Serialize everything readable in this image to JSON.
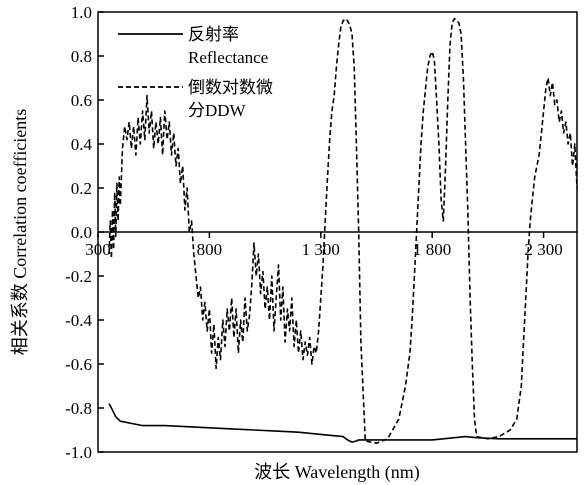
{
  "chart_data": {
    "type": "line",
    "xlabel": "波长 Wavelength (nm)",
    "ylabel": "相关系数 Correlation coefficients",
    "xlim": [
      300,
      2450
    ],
    "ylim": [
      -1.0,
      1.0
    ],
    "yticks": [
      -1.0,
      -0.8,
      -0.6,
      -0.4,
      -0.2,
      0.0,
      0.2,
      0.4,
      0.6,
      0.8,
      1.0
    ],
    "ytick_labels": [
      "-1.0",
      "-0.8",
      "-0.6",
      "-0.4",
      "-0.2",
      "0.0",
      "0.2",
      "0.4",
      "0.6",
      "0.8",
      "1.0"
    ],
    "xticks": [
      300,
      800,
      1300,
      1800,
      2300
    ],
    "xtick_labels": [
      "300",
      "800",
      "1 300",
      "1 800",
      "2 300"
    ],
    "xtick_label_axis_y": 0.0,
    "grid": false,
    "legend": {
      "placement": "top-left",
      "entries": [
        {
          "lines": [
            "反射率",
            "Reflectance"
          ],
          "style": "solid"
        },
        {
          "lines": [
            "倒数对数微",
            "分DDW"
          ],
          "style": "dashed"
        }
      ]
    },
    "series": [
      {
        "style": "solid",
        "x": [
          350,
          360,
          380,
          400,
          450,
          500,
          600,
          700,
          800,
          900,
          1000,
          1100,
          1200,
          1300,
          1400,
          1420,
          1440,
          1460,
          1470,
          1500,
          1600,
          1700,
          1800,
          1900,
          1950,
          2000,
          2100,
          2200,
          2300,
          2400,
          2450
        ],
        "y": [
          -0.78,
          -0.8,
          -0.84,
          -0.86,
          -0.87,
          -0.88,
          -0.88,
          -0.885,
          -0.89,
          -0.895,
          -0.9,
          -0.905,
          -0.91,
          -0.92,
          -0.93,
          -0.945,
          -0.955,
          -0.95,
          -0.945,
          -0.945,
          -0.945,
          -0.945,
          -0.945,
          -0.935,
          -0.93,
          -0.935,
          -0.94,
          -0.94,
          -0.94,
          -0.94,
          -0.94
        ]
      },
      {
        "style": "dashed",
        "x": [
          350,
          355,
          360,
          365,
          370,
          375,
          380,
          385,
          390,
          395,
          400,
          410,
          420,
          430,
          440,
          450,
          460,
          470,
          480,
          490,
          500,
          510,
          520,
          530,
          540,
          550,
          560,
          570,
          580,
          590,
          600,
          610,
          620,
          630,
          640,
          650,
          660,
          670,
          680,
          690,
          700,
          710,
          720,
          730,
          740,
          750,
          760,
          770,
          780,
          790,
          800,
          810,
          820,
          830,
          840,
          850,
          860,
          870,
          880,
          890,
          900,
          910,
          920,
          930,
          940,
          950,
          960,
          970,
          980,
          990,
          1000,
          1010,
          1020,
          1030,
          1040,
          1050,
          1060,
          1070,
          1080,
          1090,
          1100,
          1110,
          1120,
          1130,
          1140,
          1150,
          1160,
          1170,
          1180,
          1190,
          1200,
          1210,
          1220,
          1230,
          1240,
          1250,
          1260,
          1270,
          1280,
          1290,
          1300,
          1310,
          1320,
          1330,
          1340,
          1350,
          1360,
          1370,
          1380,
          1390,
          1400,
          1410,
          1420,
          1430,
          1440,
          1450,
          1460,
          1470,
          1480,
          1500,
          1550,
          1600,
          1650,
          1680,
          1700,
          1710,
          1720,
          1730,
          1740,
          1750,
          1760,
          1770,
          1780,
          1790,
          1800,
          1810,
          1820,
          1830,
          1840,
          1850,
          1860,
          1870,
          1880,
          1890,
          1900,
          1910,
          1920,
          1930,
          1940,
          1950,
          1960,
          1970,
          1980,
          1990,
          2000,
          2050,
          2100,
          2150,
          2180,
          2200,
          2210,
          2220,
          2230,
          2240,
          2250,
          2260,
          2270,
          2280,
          2290,
          2300,
          2310,
          2320,
          2330,
          2340,
          2350,
          2360,
          2370,
          2380,
          2390,
          2400,
          2410,
          2420,
          2430,
          2440,
          2450
        ],
        "y": [
          -0.1,
          0.05,
          -0.12,
          0.1,
          -0.08,
          0.18,
          -0.02,
          0.22,
          0.05,
          0.25,
          0.12,
          0.38,
          0.48,
          0.42,
          0.5,
          0.38,
          0.48,
          0.35,
          0.52,
          0.4,
          0.55,
          0.42,
          0.62,
          0.45,
          0.55,
          0.38,
          0.5,
          0.4,
          0.52,
          0.35,
          0.55,
          0.42,
          0.5,
          0.35,
          0.45,
          0.3,
          0.38,
          0.22,
          0.3,
          0.1,
          0.2,
          0.0,
          0.05,
          -0.1,
          -0.2,
          -0.3,
          -0.25,
          -0.4,
          -0.32,
          -0.45,
          -0.35,
          -0.55,
          -0.42,
          -0.62,
          -0.48,
          -0.58,
          -0.4,
          -0.52,
          -0.35,
          -0.45,
          -0.3,
          -0.48,
          -0.35,
          -0.55,
          -0.4,
          -0.5,
          -0.3,
          -0.45,
          -0.38,
          -0.25,
          -0.05,
          -0.2,
          -0.1,
          -0.28,
          -0.18,
          -0.35,
          -0.25,
          -0.4,
          -0.2,
          -0.45,
          -0.3,
          -0.15,
          -0.4,
          -0.25,
          -0.5,
          -0.35,
          -0.45,
          -0.3,
          -0.52,
          -0.4,
          -0.55,
          -0.45,
          -0.58,
          -0.5,
          -0.56,
          -0.48,
          -0.6,
          -0.52,
          -0.55,
          -0.45,
          -0.3,
          -0.15,
          0.05,
          0.25,
          0.42,
          0.55,
          0.62,
          0.75,
          0.85,
          0.93,
          0.96,
          0.97,
          0.96,
          0.94,
          0.9,
          0.75,
          0.4,
          0.0,
          -0.5,
          -0.95,
          -0.96,
          -0.94,
          -0.85,
          -0.7,
          -0.55,
          -0.4,
          -0.2,
          0.0,
          0.2,
          0.4,
          0.55,
          0.65,
          0.75,
          0.8,
          0.82,
          0.78,
          0.6,
          0.4,
          0.15,
          0.05,
          0.3,
          0.6,
          0.85,
          0.95,
          0.97,
          0.96,
          0.95,
          0.9,
          0.7,
          0.4,
          0.1,
          -0.3,
          -0.6,
          -0.85,
          -0.93,
          -0.94,
          -0.93,
          -0.9,
          -0.85,
          -0.7,
          -0.5,
          -0.3,
          -0.1,
          0.05,
          0.15,
          0.25,
          0.3,
          0.35,
          0.45,
          0.55,
          0.65,
          0.7,
          0.62,
          0.68,
          0.58,
          0.6,
          0.5,
          0.55,
          0.45,
          0.5,
          0.4,
          0.45,
          0.3,
          0.4,
          0.2
        ]
      }
    ]
  }
}
